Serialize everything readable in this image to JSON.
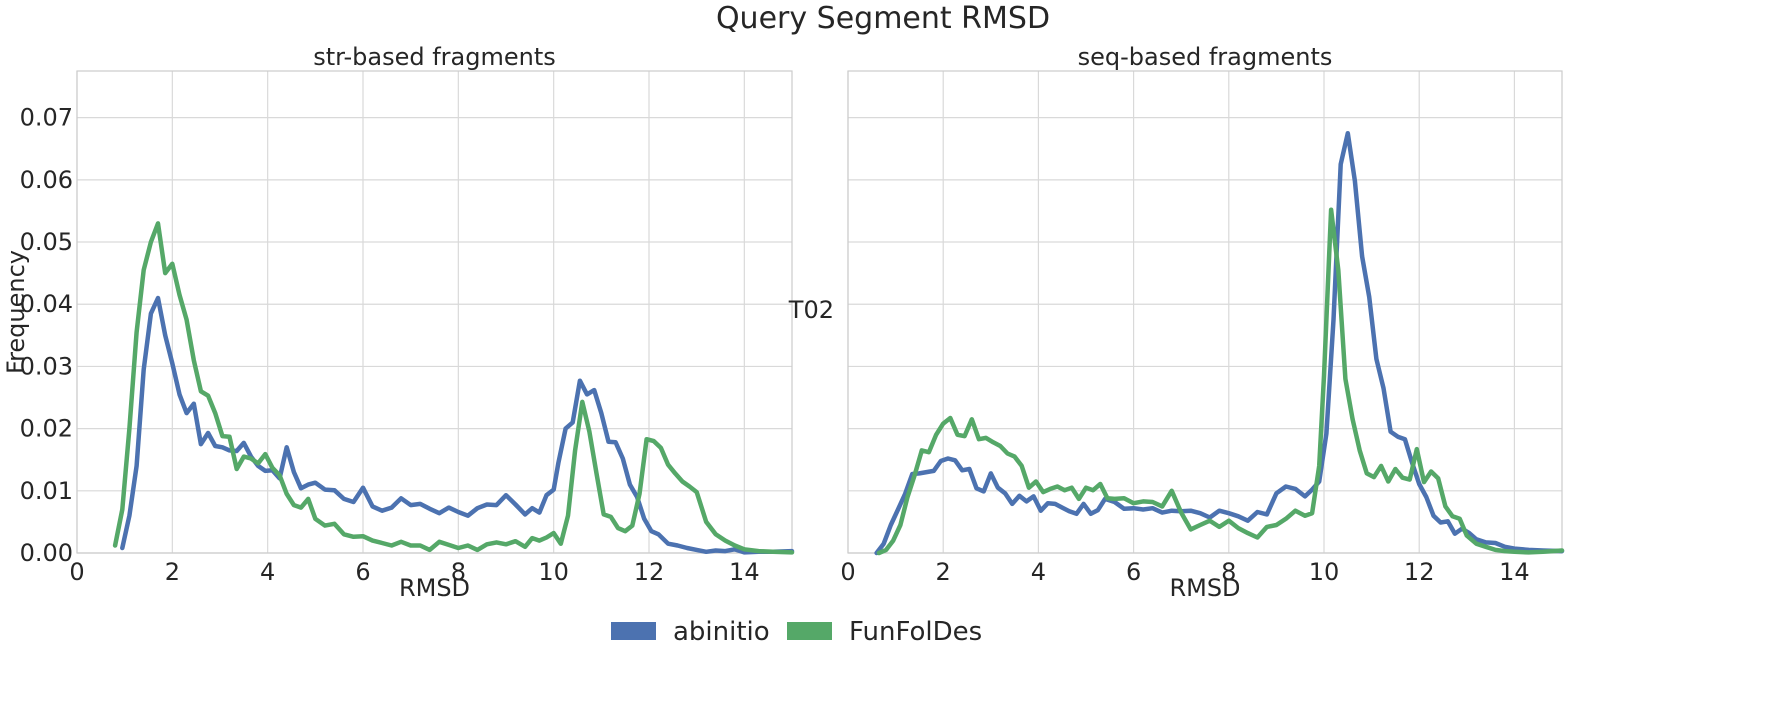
{
  "figure": {
    "title": "Query Segment RMSD"
  },
  "colors": {
    "abinitio": "#4c72b0",
    "FunFolDes": "#55a868"
  },
  "legend": {
    "items": [
      {
        "label": "abinitio",
        "color": "#4c72b0"
      },
      {
        "label": "FunFolDes",
        "color": "#55a868"
      }
    ],
    "placement": "bottom-center"
  },
  "chart_data": [
    {
      "type": "line",
      "title": "str-based fragments",
      "xlabel": "RMSD",
      "ylabel": "Frequency",
      "xlim": [
        0,
        15
      ],
      "ylim": [
        0,
        0.0775
      ],
      "xticks": [
        0,
        2,
        4,
        6,
        8,
        10,
        12,
        14
      ],
      "yticks": [
        0.0,
        0.01,
        0.02,
        0.03,
        0.04,
        0.05,
        0.06,
        0.07
      ],
      "ytick_labels": [
        "0.00",
        "0.01",
        "0.02",
        "0.03",
        "0.04",
        "0.05",
        "0.06",
        "0.07"
      ],
      "grid": true,
      "series": [
        {
          "name": "abinitio",
          "x": [
            0.95,
            1.1,
            1.25,
            1.4,
            1.55,
            1.7,
            1.85,
            2.0,
            2.15,
            2.3,
            2.45,
            2.6,
            2.75,
            2.9,
            3.05,
            3.2,
            3.35,
            3.5,
            3.65,
            3.8,
            3.95,
            4.1,
            4.25,
            4.4,
            4.55,
            4.7,
            4.85,
            5.0,
            5.2,
            5.4,
            5.6,
            5.8,
            6.0,
            6.2,
            6.4,
            6.6,
            6.8,
            7.0,
            7.2,
            7.4,
            7.6,
            7.8,
            8.0,
            8.2,
            8.4,
            8.6,
            8.8,
            9.0,
            9.2,
            9.4,
            9.55,
            9.7,
            9.85,
            10.0,
            10.1,
            10.25,
            10.4,
            10.55,
            10.7,
            10.85,
            11.0,
            11.15,
            11.3,
            11.45,
            11.6,
            11.75,
            11.9,
            12.05,
            12.2,
            12.4,
            12.6,
            12.8,
            13.0,
            13.2,
            13.4,
            13.6,
            13.8,
            14.0,
            14.3,
            14.6,
            15.0
          ],
          "values": [
            0.0008,
            0.006,
            0.014,
            0.0295,
            0.0385,
            0.041,
            0.035,
            0.0305,
            0.0255,
            0.0225,
            0.024,
            0.0175,
            0.0193,
            0.0172,
            0.017,
            0.0165,
            0.0164,
            0.0177,
            0.0155,
            0.014,
            0.0132,
            0.0133,
            0.012,
            0.017,
            0.013,
            0.0104,
            0.011,
            0.0113,
            0.0102,
            0.0101,
            0.0087,
            0.0082,
            0.0105,
            0.0075,
            0.0068,
            0.0073,
            0.0088,
            0.0077,
            0.0079,
            0.0071,
            0.0064,
            0.0073,
            0.0066,
            0.006,
            0.0072,
            0.0078,
            0.0077,
            0.0093,
            0.0078,
            0.0062,
            0.0072,
            0.0065,
            0.0093,
            0.0102,
            0.0145,
            0.02,
            0.021,
            0.0277,
            0.0255,
            0.0262,
            0.0225,
            0.0179,
            0.0178,
            0.0152,
            0.011,
            0.009,
            0.0055,
            0.0035,
            0.003,
            0.0015,
            0.0012,
            0.0008,
            0.0005,
            0.0002,
            0.0004,
            0.0003,
            0.0006,
            0.0001,
            0.0002,
            0.0002,
            0.0003
          ]
        },
        {
          "name": "FunFolDes",
          "x": [
            0.8,
            0.95,
            1.1,
            1.25,
            1.4,
            1.55,
            1.7,
            1.85,
            2.0,
            2.15,
            2.3,
            2.45,
            2.6,
            2.75,
            2.9,
            3.05,
            3.2,
            3.35,
            3.5,
            3.65,
            3.8,
            3.95,
            4.1,
            4.25,
            4.4,
            4.55,
            4.7,
            4.85,
            5.0,
            5.2,
            5.4,
            5.6,
            5.8,
            6.0,
            6.2,
            6.4,
            6.6,
            6.8,
            7.0,
            7.2,
            7.4,
            7.6,
            7.8,
            8.0,
            8.2,
            8.4,
            8.6,
            8.8,
            9.0,
            9.2,
            9.4,
            9.55,
            9.7,
            9.85,
            10.0,
            10.15,
            10.3,
            10.45,
            10.6,
            10.75,
            10.9,
            11.05,
            11.2,
            11.35,
            11.5,
            11.65,
            11.8,
            11.95,
            12.1,
            12.25,
            12.4,
            12.55,
            12.7,
            12.85,
            13.0,
            13.2,
            13.4,
            13.6,
            13.8,
            14.0,
            14.3,
            14.6,
            15.0
          ],
          "values": [
            0.0012,
            0.007,
            0.02,
            0.0355,
            0.0455,
            0.05,
            0.053,
            0.045,
            0.0465,
            0.0415,
            0.0375,
            0.031,
            0.026,
            0.0253,
            0.0225,
            0.0188,
            0.0187,
            0.0135,
            0.0155,
            0.0152,
            0.0144,
            0.0159,
            0.0137,
            0.0125,
            0.0095,
            0.0077,
            0.0073,
            0.0087,
            0.0055,
            0.0044,
            0.0047,
            0.003,
            0.0026,
            0.0027,
            0.002,
            0.0016,
            0.0012,
            0.0018,
            0.0012,
            0.0012,
            0.0005,
            0.0018,
            0.0013,
            0.0008,
            0.0012,
            0.0005,
            0.0014,
            0.0017,
            0.0014,
            0.0019,
            0.001,
            0.0024,
            0.002,
            0.0025,
            0.0032,
            0.0015,
            0.006,
            0.0165,
            0.0243,
            0.0195,
            0.0127,
            0.0062,
            0.0058,
            0.004,
            0.0035,
            0.0044,
            0.0095,
            0.0183,
            0.018,
            0.0169,
            0.0142,
            0.0128,
            0.0115,
            0.0107,
            0.0098,
            0.005,
            0.003,
            0.002,
            0.0012,
            0.0006,
            0.0003,
            0.0002,
            0.0001
          ]
        }
      ]
    },
    {
      "type": "line",
      "title": "seq-based fragments",
      "xlabel": "RMSD",
      "ylabel": "T02",
      "xlim": [
        0,
        15
      ],
      "ylim": [
        0,
        0.0775
      ],
      "xticks": [
        0,
        2,
        4,
        6,
        8,
        10,
        12,
        14
      ],
      "yticks": [
        0.0,
        0.01,
        0.02,
        0.03,
        0.04,
        0.05,
        0.06,
        0.07
      ],
      "grid": true,
      "series": [
        {
          "name": "abinitio",
          "x": [
            0.6,
            0.75,
            0.9,
            1.05,
            1.2,
            1.35,
            1.5,
            1.65,
            1.8,
            1.95,
            2.1,
            2.25,
            2.4,
            2.55,
            2.7,
            2.85,
            3.0,
            3.15,
            3.3,
            3.45,
            3.6,
            3.75,
            3.9,
            4.05,
            4.2,
            4.35,
            4.5,
            4.65,
            4.8,
            4.95,
            5.1,
            5.25,
            5.4,
            5.6,
            5.8,
            6.0,
            6.2,
            6.4,
            6.6,
            6.8,
            7.0,
            7.2,
            7.4,
            7.6,
            7.8,
            8.0,
            8.2,
            8.4,
            8.6,
            8.8,
            9.0,
            9.2,
            9.4,
            9.6,
            9.75,
            9.9,
            10.05,
            10.2,
            10.35,
            10.5,
            10.65,
            10.8,
            10.95,
            11.1,
            11.25,
            11.4,
            11.55,
            11.7,
            11.85,
            12.0,
            12.15,
            12.3,
            12.45,
            12.6,
            12.75,
            12.9,
            13.05,
            13.2,
            13.4,
            13.6,
            13.8,
            14.0,
            14.3,
            14.6,
            15.0
          ],
          "values": [
            0.0,
            0.0015,
            0.0045,
            0.007,
            0.0095,
            0.0127,
            0.0128,
            0.013,
            0.0132,
            0.0148,
            0.0152,
            0.0149,
            0.0133,
            0.0135,
            0.0104,
            0.0099,
            0.0128,
            0.0105,
            0.0096,
            0.0079,
            0.0092,
            0.0083,
            0.0091,
            0.0068,
            0.008,
            0.0079,
            0.0073,
            0.0067,
            0.0063,
            0.0079,
            0.0063,
            0.0069,
            0.0087,
            0.0082,
            0.0071,
            0.0072,
            0.007,
            0.0072,
            0.0065,
            0.0068,
            0.0067,
            0.0068,
            0.0064,
            0.0057,
            0.0068,
            0.0064,
            0.0059,
            0.0052,
            0.0066,
            0.0062,
            0.0096,
            0.0107,
            0.0103,
            0.0091,
            0.0102,
            0.0115,
            0.0192,
            0.0375,
            0.0625,
            0.0675,
            0.0598,
            0.0477,
            0.0412,
            0.0312,
            0.0265,
            0.0195,
            0.0187,
            0.0183,
            0.0145,
            0.0111,
            0.009,
            0.006,
            0.0049,
            0.0051,
            0.0031,
            0.0039,
            0.0032,
            0.0022,
            0.0017,
            0.0016,
            0.001,
            0.0007,
            0.0005,
            0.0004,
            0.0003
          ]
        },
        {
          "name": "FunFolDes",
          "x": [
            0.65,
            0.8,
            0.95,
            1.1,
            1.25,
            1.4,
            1.55,
            1.7,
            1.85,
            2.0,
            2.15,
            2.3,
            2.45,
            2.6,
            2.75,
            2.9,
            3.05,
            3.2,
            3.35,
            3.5,
            3.65,
            3.8,
            3.95,
            4.1,
            4.25,
            4.4,
            4.55,
            4.7,
            4.85,
            5.0,
            5.15,
            5.3,
            5.45,
            5.6,
            5.8,
            6.0,
            6.2,
            6.4,
            6.6,
            6.8,
            7.0,
            7.2,
            7.4,
            7.6,
            7.8,
            8.0,
            8.2,
            8.4,
            8.6,
            8.8,
            9.0,
            9.2,
            9.4,
            9.6,
            9.75,
            9.9,
            10.0,
            10.15,
            10.3,
            10.45,
            10.6,
            10.75,
            10.9,
            11.05,
            11.2,
            11.35,
            11.5,
            11.65,
            11.8,
            11.95,
            12.1,
            12.25,
            12.4,
            12.55,
            12.7,
            12.85,
            13.0,
            13.2,
            13.4,
            13.6,
            13.8,
            14.0,
            14.3,
            14.6,
            15.0
          ],
          "values": [
            0.0,
            0.0005,
            0.002,
            0.0045,
            0.009,
            0.0125,
            0.0165,
            0.0162,
            0.019,
            0.0208,
            0.0217,
            0.019,
            0.0188,
            0.0215,
            0.0183,
            0.0185,
            0.0178,
            0.0172,
            0.016,
            0.0155,
            0.014,
            0.0105,
            0.0115,
            0.0098,
            0.0103,
            0.0107,
            0.0101,
            0.0105,
            0.0087,
            0.0105,
            0.0101,
            0.0111,
            0.0088,
            0.0087,
            0.0088,
            0.008,
            0.0083,
            0.0082,
            0.0075,
            0.01,
            0.0065,
            0.0038,
            0.0045,
            0.0052,
            0.0042,
            0.0052,
            0.004,
            0.0032,
            0.0025,
            0.0042,
            0.0045,
            0.0055,
            0.0068,
            0.006,
            0.0064,
            0.014,
            0.0285,
            0.0552,
            0.0455,
            0.028,
            0.0215,
            0.0165,
            0.0128,
            0.0122,
            0.014,
            0.0115,
            0.0135,
            0.0121,
            0.0118,
            0.0167,
            0.0114,
            0.0131,
            0.012,
            0.0075,
            0.0059,
            0.0055,
            0.0028,
            0.0015,
            0.001,
            0.0005,
            0.0003,
            0.0002,
            0.0001,
            0.0002,
            0.0004
          ]
        }
      ]
    }
  ]
}
